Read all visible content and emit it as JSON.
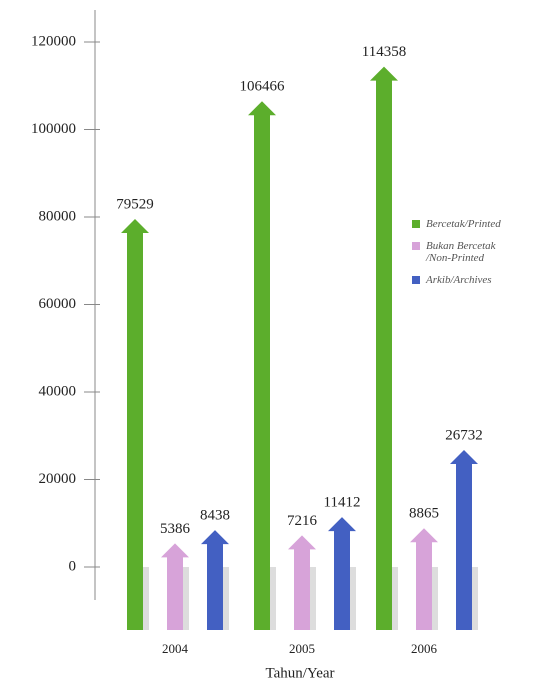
{
  "chart_data": {
    "type": "bar",
    "categories": [
      "2004",
      "2005",
      "2006"
    ],
    "series": [
      {
        "name": "Bercetak/Printed",
        "color": "#5cae2c",
        "values": [
          79529,
          106466,
          114358
        ]
      },
      {
        "name": "Bukan Bercetak /Non-Printed",
        "color": "#d7a3d9",
        "values": [
          5386,
          7216,
          8865
        ]
      },
      {
        "name": "Arkib/Archives",
        "color": "#4360c2",
        "values": [
          8438,
          11412,
          26732
        ]
      }
    ],
    "ylim": [
      0,
      120000
    ],
    "yticks": [
      0,
      20000,
      40000,
      60000,
      80000,
      100000,
      120000
    ],
    "x_label": "Tahun/Year",
    "legend": "right"
  }
}
